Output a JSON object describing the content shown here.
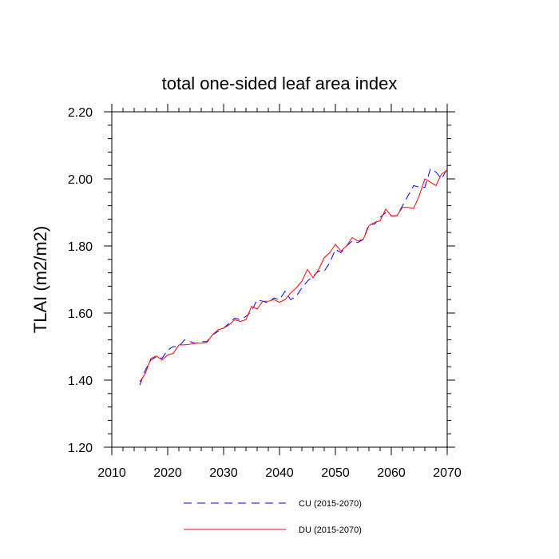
{
  "chart_data": {
    "type": "line",
    "title": "total one-sided leaf area index",
    "xlabel": "",
    "ylabel": "TLAI  (m2/m2)",
    "xlim": [
      2010,
      2070
    ],
    "ylim": [
      1.2,
      2.2
    ],
    "xticks": [
      "2010",
      "2020",
      "2030",
      "2040",
      "2050",
      "2060",
      "2070"
    ],
    "yticks": [
      "1.20",
      "1.40",
      "1.60",
      "1.80",
      "2.00",
      "2.20"
    ],
    "grid": false,
    "legend_position": "bottom",
    "series": [
      {
        "name": "CU (2015-2070)",
        "color": "#0000ff",
        "style": "dashed",
        "x": [
          2015,
          2016,
          2017,
          2018,
          2019,
          2020,
          2021,
          2022,
          2023,
          2024,
          2025,
          2026,
          2027,
          2028,
          2029,
          2030,
          2031,
          2032,
          2033,
          2034,
          2035,
          2036,
          2037,
          2038,
          2039,
          2040,
          2041,
          2042,
          2043,
          2044,
          2045,
          2046,
          2047,
          2048,
          2049,
          2050,
          2051,
          2052,
          2053,
          2054,
          2055,
          2056,
          2057,
          2058,
          2059,
          2060,
          2061,
          2062,
          2063,
          2064,
          2065,
          2066,
          2067,
          2068,
          2069,
          2070
        ],
        "values": [
          1.385,
          1.43,
          1.46,
          1.47,
          1.465,
          1.49,
          1.5,
          1.5,
          1.52,
          1.515,
          1.51,
          1.515,
          1.515,
          1.535,
          1.545,
          1.555,
          1.57,
          1.585,
          1.58,
          1.59,
          1.605,
          1.64,
          1.635,
          1.63,
          1.645,
          1.64,
          1.665,
          1.64,
          1.65,
          1.675,
          1.695,
          1.71,
          1.725,
          1.725,
          1.75,
          1.79,
          1.78,
          1.8,
          1.815,
          1.81,
          1.82,
          1.865,
          1.865,
          1.885,
          1.9,
          1.89,
          1.89,
          1.92,
          1.95,
          1.98,
          1.975,
          1.975,
          2.03,
          2.02,
          2.0,
          2.03
        ]
      },
      {
        "name": "DU (2015-2070)",
        "color": "#ff0000",
        "style": "solid",
        "x": [
          2015,
          2016,
          2017,
          2018,
          2019,
          2020,
          2021,
          2022,
          2023,
          2024,
          2025,
          2026,
          2027,
          2028,
          2029,
          2030,
          2031,
          2032,
          2033,
          2034,
          2035,
          2036,
          2037,
          2038,
          2039,
          2040,
          2041,
          2042,
          2043,
          2044,
          2045,
          2046,
          2047,
          2048,
          2049,
          2050,
          2051,
          2052,
          2053,
          2054,
          2055,
          2056,
          2057,
          2058,
          2059,
          2060,
          2061,
          2062,
          2063,
          2064,
          2065,
          2066,
          2067,
          2068,
          2069,
          2070
        ],
        "values": [
          1.395,
          1.42,
          1.465,
          1.472,
          1.46,
          1.475,
          1.48,
          1.505,
          1.505,
          1.507,
          1.51,
          1.51,
          1.512,
          1.535,
          1.55,
          1.555,
          1.565,
          1.58,
          1.575,
          1.58,
          1.62,
          1.612,
          1.635,
          1.635,
          1.64,
          1.632,
          1.64,
          1.66,
          1.675,
          1.695,
          1.73,
          1.705,
          1.73,
          1.765,
          1.78,
          1.805,
          1.785,
          1.8,
          1.825,
          1.815,
          1.82,
          1.86,
          1.87,
          1.875,
          1.91,
          1.89,
          1.89,
          1.915,
          1.915,
          1.912,
          1.95,
          2.0,
          1.99,
          1.98,
          2.015,
          2.025
        ]
      }
    ]
  }
}
